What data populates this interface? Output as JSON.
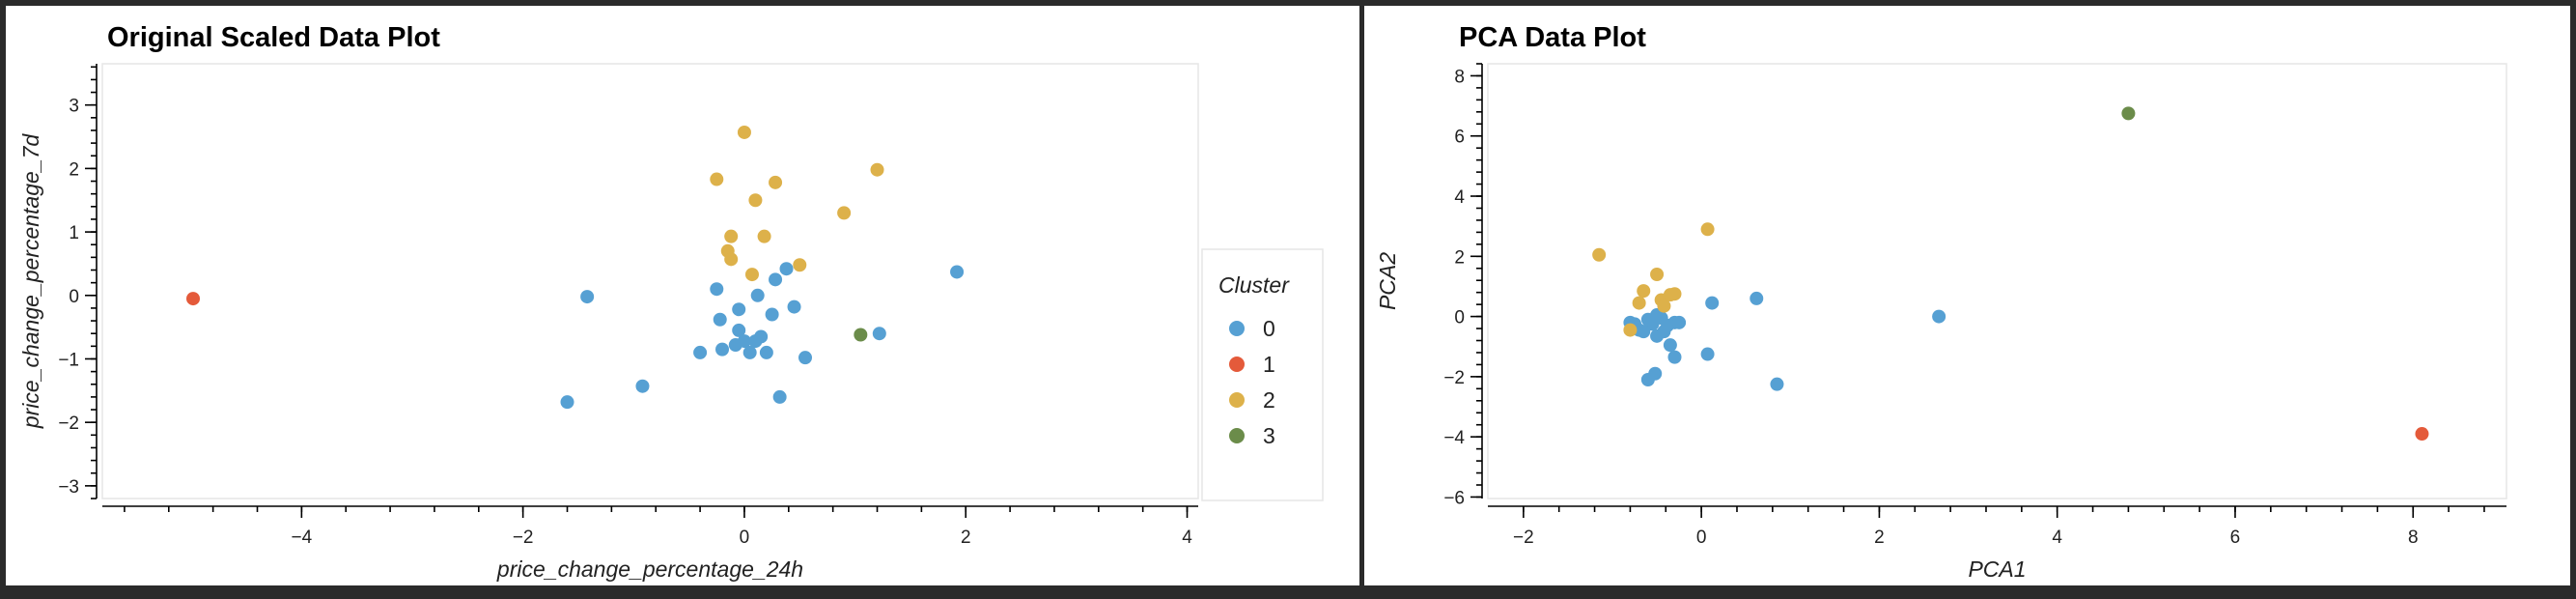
{
  "chart_data": [
    {
      "type": "scatter",
      "title": "Original Scaled Data Plot",
      "xlabel": "price_change_percentage_24h",
      "ylabel": "price_change_percentage_7d",
      "xlim": [
        -5.8,
        4.1
      ],
      "ylim": [
        -3.2,
        3.65
      ],
      "xticks": [
        -4,
        -2,
        0,
        2,
        4
      ],
      "yticks": [
        -3,
        -2,
        -1,
        0,
        1,
        2,
        3
      ],
      "grid": false,
      "legend": {
        "title": "Cluster",
        "placement": "right",
        "entries": [
          {
            "label": "0",
            "color": "#56a0d3"
          },
          {
            "label": "1",
            "color": "#e45a3a"
          },
          {
            "label": "2",
            "color": "#ddb14a"
          },
          {
            "label": "3",
            "color": "#6b8c4a"
          }
        ]
      },
      "series": [
        {
          "cluster": "0",
          "color": "#56a0d3",
          "points": [
            [
              -1.42,
              -0.02
            ],
            [
              -1.6,
              -1.68
            ],
            [
              -0.92,
              -1.43
            ],
            [
              1.92,
              0.37
            ],
            [
              1.22,
              -0.6
            ],
            [
              -0.25,
              0.1
            ],
            [
              -0.4,
              -0.9
            ],
            [
              -0.22,
              -0.38
            ],
            [
              -0.05,
              -0.55
            ],
            [
              0.1,
              -0.72
            ],
            [
              0.25,
              -0.3
            ],
            [
              0.38,
              0.42
            ],
            [
              0.45,
              -0.18
            ],
            [
              0.55,
              -0.98
            ],
            [
              0.32,
              -1.6
            ],
            [
              -0.08,
              -0.78
            ],
            [
              0.0,
              -0.72
            ],
            [
              0.05,
              -0.9
            ],
            [
              0.2,
              -0.9
            ],
            [
              -0.2,
              -0.85
            ],
            [
              -0.05,
              -0.22
            ],
            [
              0.12,
              0.0
            ],
            [
              0.28,
              0.25
            ],
            [
              0.15,
              -0.65
            ]
          ]
        },
        {
          "cluster": "1",
          "color": "#e45a3a",
          "points": [
            [
              -4.98,
              -0.05
            ]
          ]
        },
        {
          "cluster": "2",
          "color": "#ddb14a",
          "points": [
            [
              -0.25,
              1.83
            ],
            [
              0.0,
              2.57
            ],
            [
              0.28,
              1.78
            ],
            [
              1.2,
              1.98
            ],
            [
              0.1,
              1.5
            ],
            [
              0.9,
              1.3
            ],
            [
              -0.12,
              0.93
            ],
            [
              0.18,
              0.93
            ],
            [
              -0.15,
              0.7
            ],
            [
              -0.12,
              0.57
            ],
            [
              0.07,
              0.33
            ],
            [
              0.5,
              0.48
            ]
          ]
        },
        {
          "cluster": "3",
          "color": "#6b8c4a",
          "points": [
            [
              1.05,
              -0.62
            ]
          ]
        }
      ]
    },
    {
      "type": "scatter",
      "title": "PCA Data Plot",
      "xlabel": "PCA1",
      "ylabel": "PCA2",
      "xlim": [
        -2.4,
        9.05
      ],
      "ylim": [
        -6.05,
        8.4
      ],
      "xticks": [
        -2,
        0,
        2,
        4,
        6,
        8
      ],
      "yticks": [
        -6,
        -4,
        -2,
        0,
        2,
        4,
        6,
        8
      ],
      "grid": false,
      "series": [
        {
          "cluster": "0",
          "color": "#56a0d3",
          "points": [
            [
              2.67,
              0.0
            ],
            [
              0.62,
              0.6
            ],
            [
              0.12,
              0.45
            ],
            [
              0.85,
              -2.25
            ],
            [
              0.07,
              -1.25
            ],
            [
              -0.6,
              -2.1
            ],
            [
              -0.52,
              -1.9
            ],
            [
              -0.3,
              -1.35
            ],
            [
              -0.35,
              -0.95
            ],
            [
              -0.5,
              -0.65
            ],
            [
              -0.42,
              -0.5
            ],
            [
              -0.55,
              -0.25
            ],
            [
              -0.7,
              -0.45
            ],
            [
              -0.6,
              -0.1
            ],
            [
              -0.45,
              -0.05
            ],
            [
              -0.3,
              -0.2
            ],
            [
              -0.75,
              -0.25
            ],
            [
              -0.65,
              -0.5
            ],
            [
              -0.38,
              -0.3
            ],
            [
              -0.8,
              -0.2
            ],
            [
              -0.5,
              0.05
            ],
            [
              -0.25,
              -0.2
            ]
          ]
        },
        {
          "cluster": "1",
          "color": "#e45a3a",
          "points": [
            [
              8.1,
              -3.9
            ]
          ]
        },
        {
          "cluster": "2",
          "color": "#ddb14a",
          "points": [
            [
              -1.15,
              2.05
            ],
            [
              0.07,
              2.9
            ],
            [
              -0.5,
              1.4
            ],
            [
              -0.65,
              0.85
            ],
            [
              -0.45,
              0.55
            ],
            [
              -0.35,
              0.72
            ],
            [
              -0.3,
              0.75
            ],
            [
              -0.7,
              0.45
            ],
            [
              -0.42,
              0.35
            ],
            [
              -0.8,
              -0.45
            ]
          ]
        },
        {
          "cluster": "3",
          "color": "#6b8c4a",
          "points": [
            [
              4.8,
              6.75
            ]
          ]
        }
      ]
    }
  ]
}
